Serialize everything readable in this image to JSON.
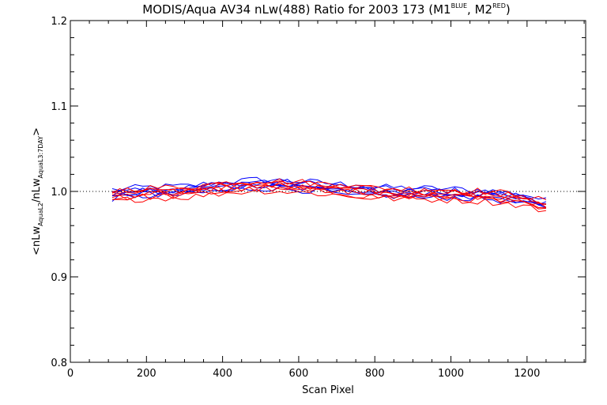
{
  "chart_data": {
    "type": "line",
    "title": {
      "main": "MODIS/Aqua AV34 nLw(488) Ratio for 2003 173 (M1",
      "sup1": "BLUE",
      "mid": ", M2",
      "sup2": "RED",
      "end": ")"
    },
    "xlabel": "Scan Pixel",
    "ylabel": {
      "p1": "<nLw",
      "s1": "AquaL2",
      "p2": "/nLw",
      "s2": "AquaL3:7DAY",
      "p3": ">"
    },
    "xlim": [
      0,
      1354
    ],
    "ylim": [
      0.8,
      1.2
    ],
    "x_ticks": [
      0,
      200,
      400,
      600,
      800,
      1000,
      1200
    ],
    "x_tick_labels": [
      "0",
      "200",
      "400",
      "600",
      "800",
      "1000",
      "1200"
    ],
    "y_ticks": [
      0.8,
      0.9,
      1.0,
      1.1,
      1.2
    ],
    "y_tick_labels": [
      "0.8",
      "0.9",
      "1.0",
      "1.1",
      "1.2"
    ],
    "reference_line": {
      "y": 1.0,
      "style": "dotted"
    },
    "x": [
      110,
      130,
      150,
      170,
      190,
      210,
      230,
      250,
      270,
      290,
      310,
      330,
      350,
      370,
      390,
      410,
      430,
      450,
      470,
      490,
      510,
      530,
      550,
      570,
      590,
      610,
      630,
      650,
      670,
      690,
      710,
      730,
      750,
      770,
      790,
      810,
      830,
      850,
      870,
      890,
      910,
      930,
      950,
      970,
      990,
      1010,
      1030,
      1050,
      1070,
      1090,
      1110,
      1130,
      1150,
      1170,
      1190,
      1210,
      1230,
      1250
    ],
    "series": [
      {
        "color": "#0000ff",
        "offset": 0.006,
        "jitter": 0.004
      },
      {
        "color": "#0000ff",
        "offset": 0.004,
        "jitter": 0.004
      },
      {
        "color": "#0000ff",
        "offset": 0.002,
        "jitter": 0.004
      },
      {
        "color": "#0000ff",
        "offset": 0.0,
        "jitter": 0.004
      },
      {
        "color": "#0000ff",
        "offset": -0.002,
        "jitter": 0.004
      },
      {
        "color": "#0000ff",
        "offset": -0.004,
        "jitter": 0.004
      },
      {
        "color": "#ff0000",
        "offset": 0.005,
        "jitter": 0.004
      },
      {
        "color": "#ff0000",
        "offset": 0.003,
        "jitter": 0.004
      },
      {
        "color": "#ff0000",
        "offset": 0.001,
        "jitter": 0.004
      },
      {
        "color": "#ff0000",
        "offset": -0.001,
        "jitter": 0.004
      },
      {
        "color": "#ff0000",
        "offset": -0.003,
        "jitter": 0.004
      },
      {
        "color": "#ff0000",
        "offset": -0.005,
        "jitter": 0.004
      },
      {
        "color": "#ff0000",
        "offset": -0.007,
        "jitter": 0.004
      }
    ],
    "base_trend": {
      "x": [
        110,
        200,
        300,
        400,
        500,
        600,
        700,
        800,
        900,
        1000,
        1100,
        1200,
        1250
      ],
      "y": [
        0.996,
        0.999,
        1.0,
        1.005,
        1.008,
        1.006,
        1.003,
        0.999,
        0.998,
        0.997,
        0.995,
        0.99,
        0.983
      ]
    },
    "colors": {
      "series_a": "#0000ff",
      "series_b": "#ff0000",
      "axes": "#000000",
      "background": "#ffffff"
    },
    "grid": false
  }
}
